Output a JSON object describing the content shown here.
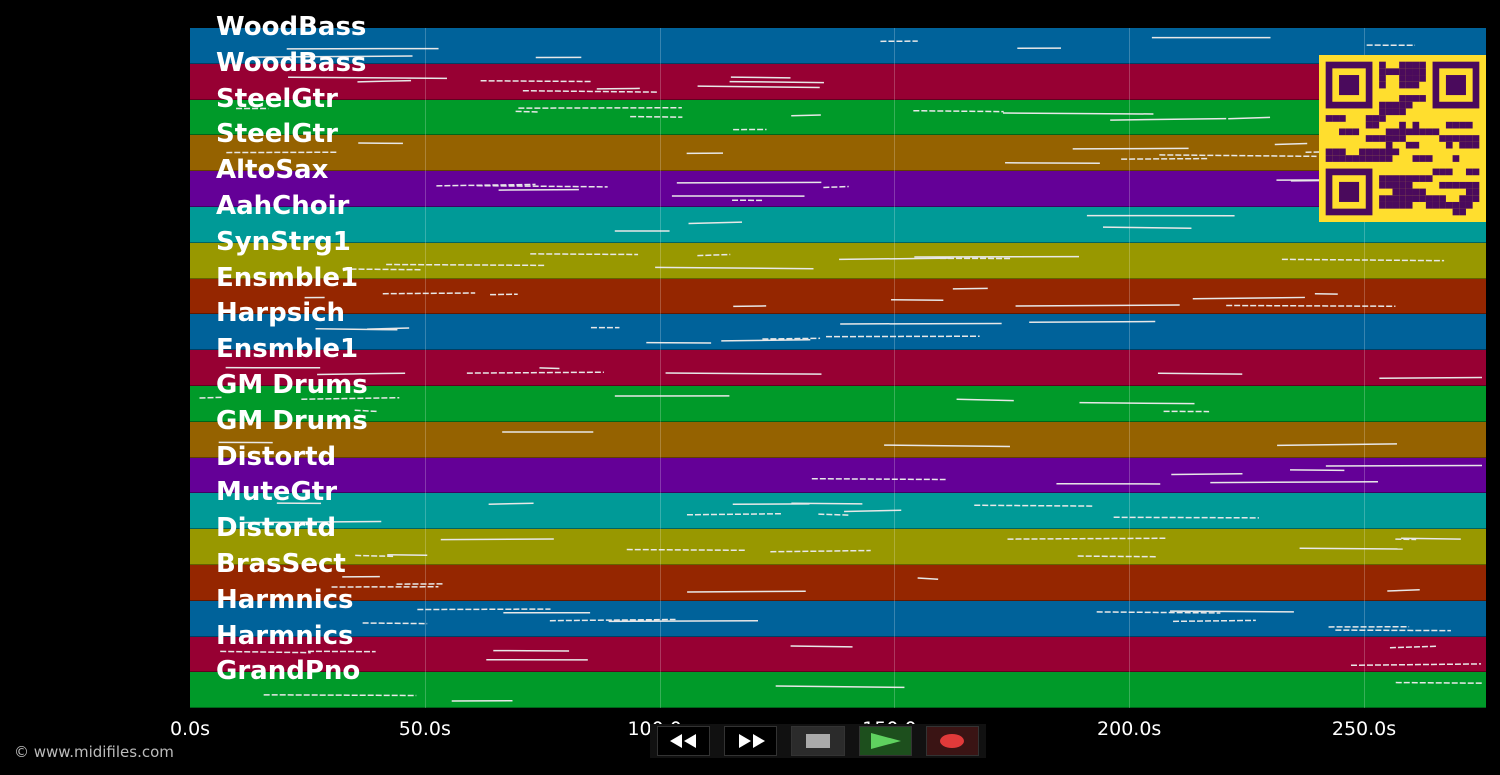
{
  "tracks": [
    {
      "name": "WoodBass",
      "color": "#00629a"
    },
    {
      "name": "WoodBass",
      "color": "#970033"
    },
    {
      "name": "SteelGtr",
      "color": "#009a29"
    },
    {
      "name": "SteelGtr",
      "color": "#956200"
    },
    {
      "name": "AltoSax",
      "color": "#640097"
    },
    {
      "name": "AahChoir",
      "color": "#009a97"
    },
    {
      "name": "SynStrg1",
      "color": "#989800"
    },
    {
      "name": "Ensmble1",
      "color": "#952600"
    },
    {
      "name": "Harpsich",
      "color": "#00629a"
    },
    {
      "name": "Ensmble1",
      "color": "#970033"
    },
    {
      "name": "GM Drums",
      "color": "#009a29"
    },
    {
      "name": "GM Drums",
      "color": "#956200"
    },
    {
      "name": "Distortd",
      "color": "#640097"
    },
    {
      "name": "MuteGtr",
      "color": "#009a97"
    },
    {
      "name": "Distortd",
      "color": "#989800"
    },
    {
      "name": "BrasSect",
      "color": "#952600"
    },
    {
      "name": "Harmnics",
      "color": "#00629a"
    },
    {
      "name": "Harmnics",
      "color": "#970033"
    },
    {
      "name": "GrandPno",
      "color": "#009a29"
    }
  ],
  "time_axis": {
    "ticks": [
      "0.0s",
      "50.0s",
      "100.0s",
      "150.0s",
      "200.0s",
      "250.0s"
    ]
  },
  "transport": {
    "buttons": [
      {
        "name": "rewind-icon"
      },
      {
        "name": "fast-forward-icon"
      },
      {
        "name": "stop-icon"
      },
      {
        "name": "play-icon"
      },
      {
        "name": "record-icon"
      }
    ]
  },
  "credit": "© www.midifiles.com",
  "qr_colors": {
    "bg": "#ffde2e",
    "fg": "#4a0a5c"
  }
}
